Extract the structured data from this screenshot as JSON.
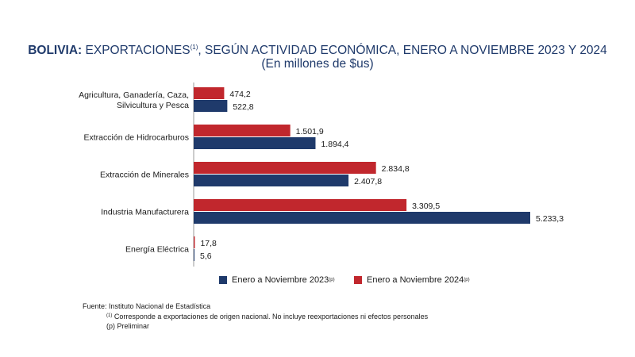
{
  "header": {
    "title_bold": "BOLIVIA:",
    "title_main": "EXPORTACIONES",
    "title_sup": "(1)",
    "title_rest": ", SEGÚN ACTIVIDAD ECONÓMICA, ENERO A NOVIEMBRE 2023 Y 2024",
    "subtitle": "(En millones de $us)"
  },
  "chart_data": {
    "type": "bar",
    "orientation": "horizontal",
    "categories": [
      [
        "Agricultura, Ganadería, Caza,",
        "Silvicultura y Pesca"
      ],
      [
        "Extracción de Hidrocarburos"
      ],
      [
        "Extracción de Minerales"
      ],
      [
        "Industria Manufacturera"
      ],
      [
        "Energía Eléctrica"
      ]
    ],
    "series": [
      {
        "name": "Enero a Noviembre 2024",
        "name_sup": "(p)",
        "color": "#c1272d",
        "values": [
          474.2,
          1501.9,
          2834.8,
          3309.5,
          17.8
        ],
        "labels": [
          "474,2",
          "1.501,9",
          "2.834,8",
          "3.309,5",
          "17,8"
        ]
      },
      {
        "name": "Enero a Noviembre 2023",
        "name_sup": "(p)",
        "color": "#1f3a6b",
        "values": [
          522.8,
          1894.4,
          2407.8,
          5233.3,
          5.6
        ],
        "labels": [
          "522,8",
          "1.894,4",
          "2.407,8",
          "5.233,3",
          "5,6"
        ]
      }
    ],
    "xlim": [
      0,
      5233.3
    ],
    "grid": false,
    "legend_position": "bottom"
  },
  "footer": {
    "source": "Fuente: Instituto Nacional de Estadística",
    "note1_sup": "(1)",
    "note1": " Corresponde a exportaciones de origen nacional. No incluye reexportaciones ni efectos personales",
    "note2": "(p) Preliminar"
  }
}
